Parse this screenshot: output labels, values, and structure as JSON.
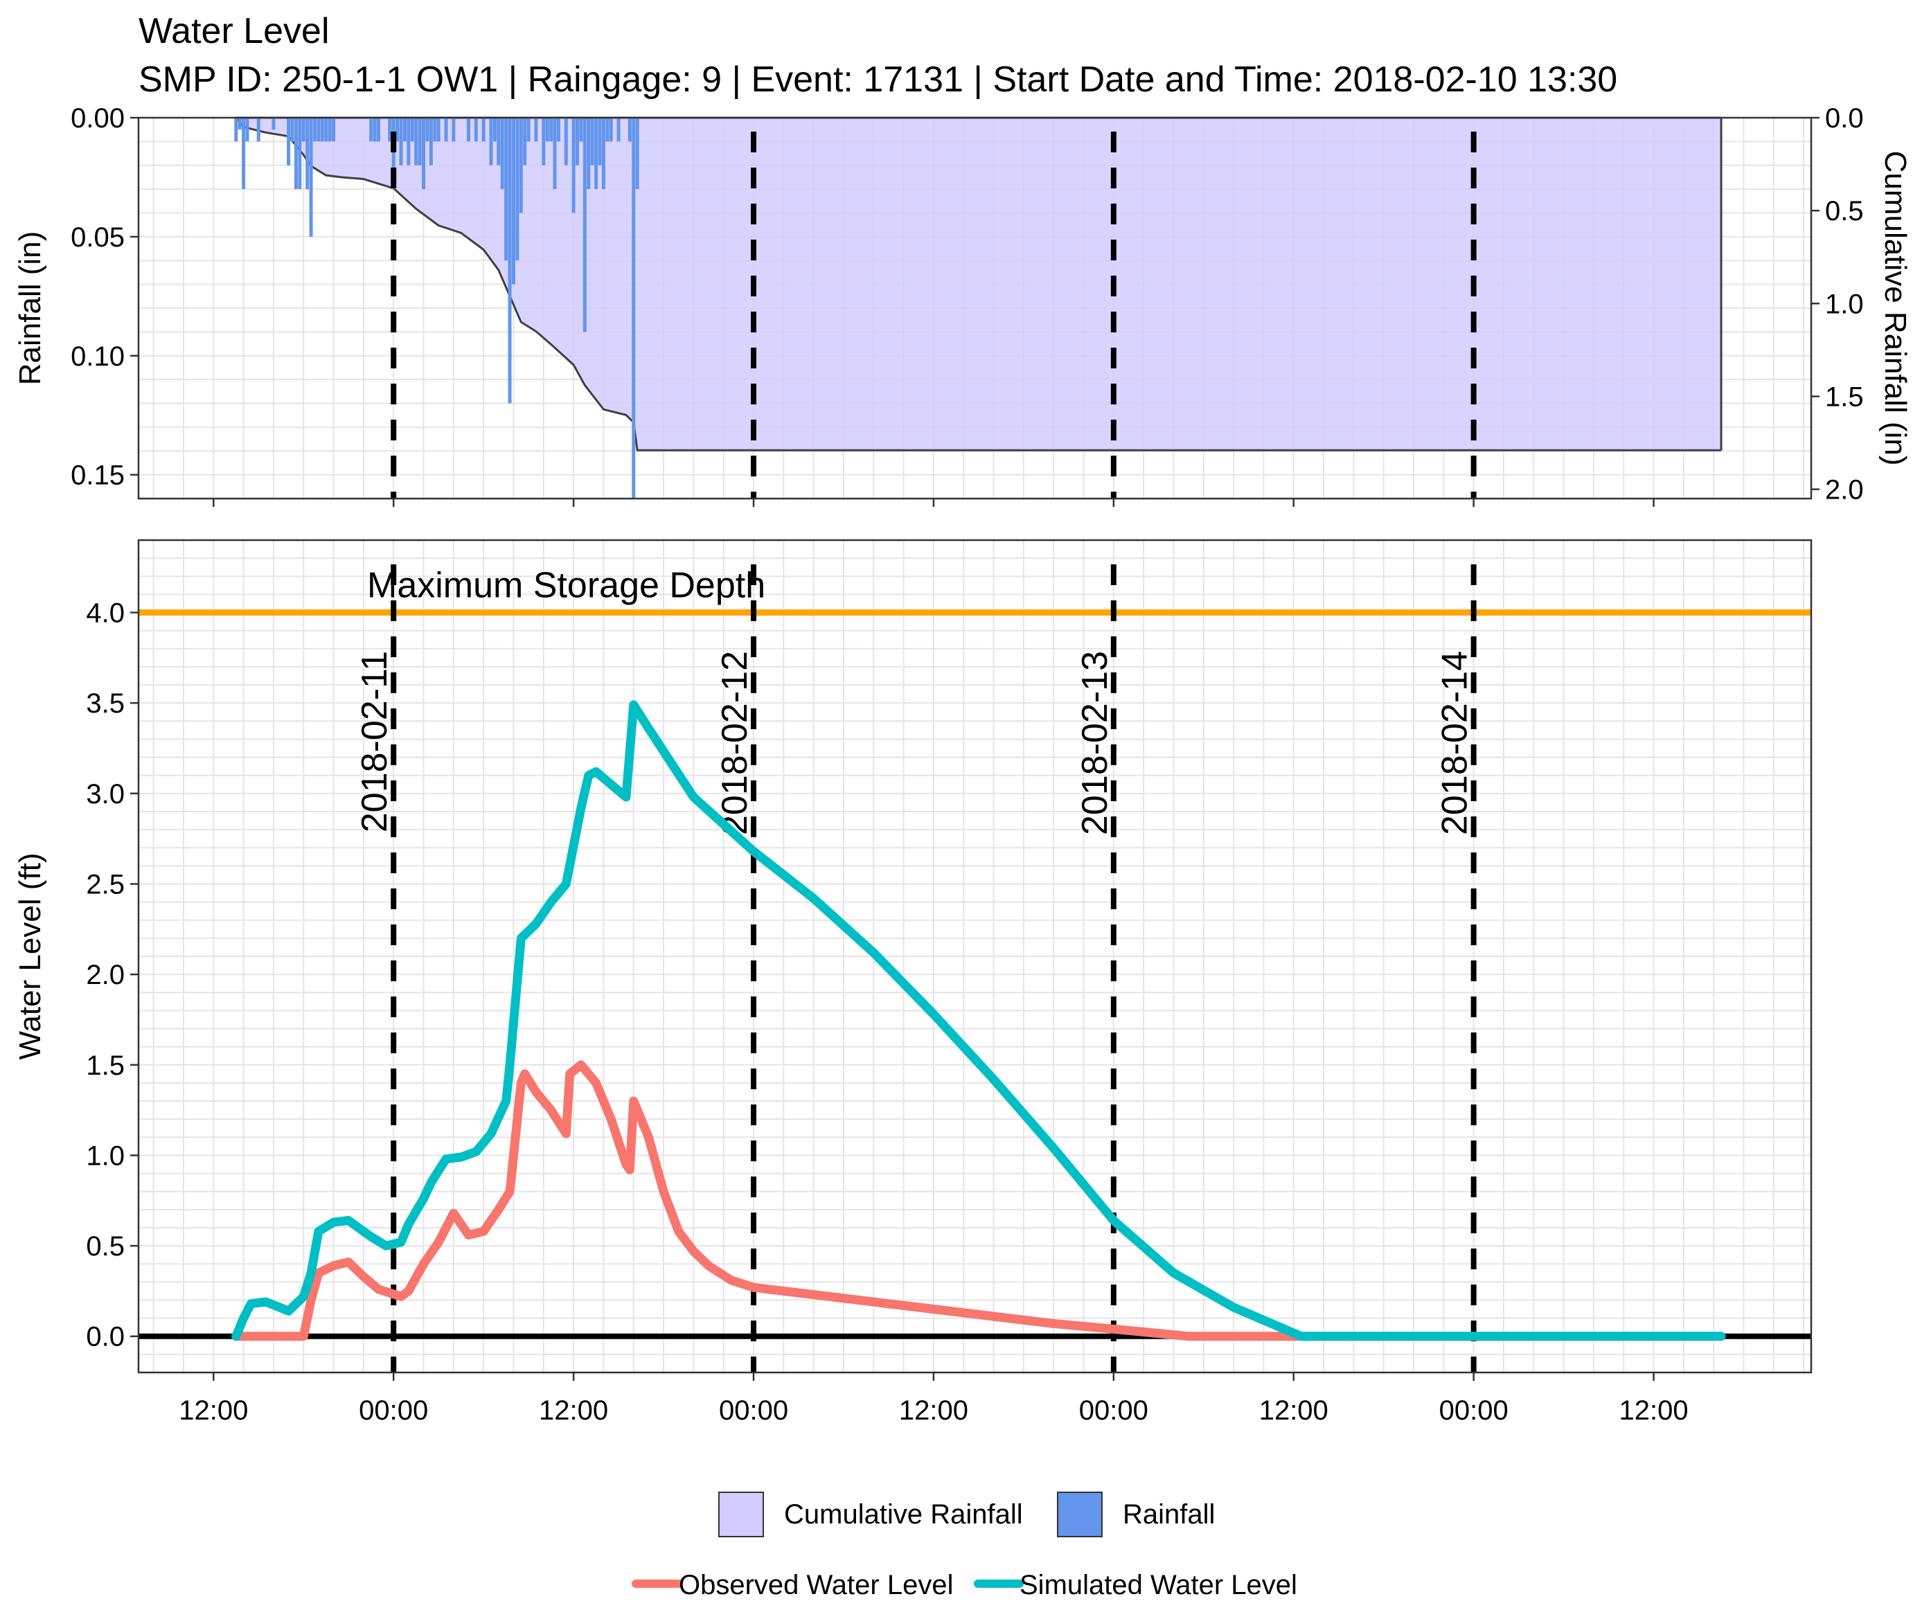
{
  "title": "Water Level",
  "subtitle": "SMP ID: 250-1-1 OW1 | Raingage: 9 | Event: 17131 | Start Date and Time: 2018-02-10 13:30",
  "colors": {
    "cumulative_fill": "#D2CCFF",
    "cumulative_line": "#404040",
    "rainfall": "#6495ED",
    "observed": "#F8766D",
    "simulated": "#00BFC4",
    "max_storage": "#FFA500",
    "day_lines": "#000000",
    "zero_line": "#000000",
    "grid": "#E5E5E5"
  },
  "chart_data": [
    {
      "type": "bar",
      "name": "rainfall-panel",
      "ylabel": "Rainfall (in)",
      "ylabel_right": "Cumulative Rainfall (in)",
      "y_reversed": true,
      "ylim": [
        0,
        0.16
      ],
      "ylim_right": [
        0,
        2.05
      ],
      "yticks": [
        "0.00",
        "0.05",
        "0.10",
        "0.15"
      ],
      "yticks_right": [
        "0.0",
        "0.5",
        "1.0",
        "1.5",
        "2.0"
      ],
      "xlim": [
        "2018-02-10 07:00",
        "2018-02-14 22:30"
      ],
      "grid": true,
      "day_lines": [
        "2018-02-11 00:00",
        "2018-02-12 00:00",
        "2018-02-13 00:00",
        "2018-02-14 00:00"
      ],
      "series": [
        {
          "name": "Rainfall",
          "type": "bar",
          "points": [
            [
              "2018-02-10 13:30",
              0.01
            ],
            [
              "2018-02-10 13:45",
              0.005
            ],
            [
              "2018-02-10 14:00",
              0.03
            ],
            [
              "2018-02-10 14:15",
              0.01
            ],
            [
              "2018-02-10 15:00",
              0.01
            ],
            [
              "2018-02-10 16:00",
              0.005
            ],
            [
              "2018-02-10 17:00",
              0.02
            ],
            [
              "2018-02-10 17:15",
              0.01
            ],
            [
              "2018-02-10 17:30",
              0.03
            ],
            [
              "2018-02-10 17:45",
              0.03
            ],
            [
              "2018-02-10 18:00",
              0.01
            ],
            [
              "2018-02-10 18:15",
              0.03
            ],
            [
              "2018-02-10 18:30",
              0.05
            ],
            [
              "2018-02-10 18:45",
              0.01
            ],
            [
              "2018-02-10 19:00",
              0.01
            ],
            [
              "2018-02-10 19:15",
              0.01
            ],
            [
              "2018-02-10 19:30",
              0.01
            ],
            [
              "2018-02-10 19:45",
              0.01
            ],
            [
              "2018-02-10 20:00",
              0.01
            ],
            [
              "2018-02-10 22:30",
              0.01
            ],
            [
              "2018-02-10 22:45",
              0.01
            ],
            [
              "2018-02-10 23:00",
              0.01
            ],
            [
              "2018-02-10 23:45",
              0.01
            ],
            [
              "2018-02-11 00:00",
              0.03
            ],
            [
              "2018-02-11 00:15",
              0.01
            ],
            [
              "2018-02-11 00:30",
              0.02
            ],
            [
              "2018-02-11 00:45",
              0.01
            ],
            [
              "2018-02-11 01:00",
              0.02
            ],
            [
              "2018-02-11 01:15",
              0.01
            ],
            [
              "2018-02-11 01:30",
              0.02
            ],
            [
              "2018-02-11 01:45",
              0.02
            ],
            [
              "2018-02-11 02:00",
              0.03
            ],
            [
              "2018-02-11 02:15",
              0.01
            ],
            [
              "2018-02-11 02:30",
              0.02
            ],
            [
              "2018-02-11 02:45",
              0.01
            ],
            [
              "2018-02-11 03:00",
              0.01
            ],
            [
              "2018-02-11 03:30",
              0.01
            ],
            [
              "2018-02-11 04:00",
              0.01
            ],
            [
              "2018-02-11 05:00",
              0.01
            ],
            [
              "2018-02-11 05:30",
              0.01
            ],
            [
              "2018-02-11 06:00",
              0.01
            ],
            [
              "2018-02-11 06:30",
              0.02
            ],
            [
              "2018-02-11 06:45",
              0.01
            ],
            [
              "2018-02-11 07:00",
              0.02
            ],
            [
              "2018-02-11 07:15",
              0.03
            ],
            [
              "2018-02-11 07:30",
              0.06
            ],
            [
              "2018-02-11 07:45",
              0.12
            ],
            [
              "2018-02-11 08:00",
              0.07
            ],
            [
              "2018-02-11 08:15",
              0.06
            ],
            [
              "2018-02-11 08:30",
              0.04
            ],
            [
              "2018-02-11 08:45",
              0.02
            ],
            [
              "2018-02-11 09:00",
              0.01
            ],
            [
              "2018-02-11 09:30",
              0.01
            ],
            [
              "2018-02-11 10:00",
              0.02
            ],
            [
              "2018-02-11 10:15",
              0.01
            ],
            [
              "2018-02-11 10:30",
              0.01
            ],
            [
              "2018-02-11 10:45",
              0.03
            ],
            [
              "2018-02-11 11:00",
              0.01
            ],
            [
              "2018-02-11 11:30",
              0.02
            ],
            [
              "2018-02-11 12:00",
              0.04
            ],
            [
              "2018-02-11 12:15",
              0.02
            ],
            [
              "2018-02-11 12:30",
              0.01
            ],
            [
              "2018-02-11 12:45",
              0.09
            ],
            [
              "2018-02-11 13:00",
              0.03
            ],
            [
              "2018-02-11 13:15",
              0.02
            ],
            [
              "2018-02-11 13:30",
              0.03
            ],
            [
              "2018-02-11 13:45",
              0.02
            ],
            [
              "2018-02-11 14:00",
              0.03
            ],
            [
              "2018-02-11 14:15",
              0.01
            ],
            [
              "2018-02-11 14:30",
              0.01
            ],
            [
              "2018-02-11 15:00",
              0.01
            ],
            [
              "2018-02-11 15:45",
              0.01
            ],
            [
              "2018-02-11 16:00",
              0.16
            ],
            [
              "2018-02-11 16:15",
              0.03
            ]
          ]
        },
        {
          "name": "Cumulative Rainfall",
          "type": "area",
          "points": [
            [
              "2018-02-10 13:30",
              0.0
            ],
            [
              "2018-02-10 14:00",
              0.05
            ],
            [
              "2018-02-10 15:30",
              0.08
            ],
            [
              "2018-02-10 17:00",
              0.1
            ],
            [
              "2018-02-10 18:00",
              0.2
            ],
            [
              "2018-02-10 18:30",
              0.26
            ],
            [
              "2018-02-10 19:30",
              0.31
            ],
            [
              "2018-02-10 20:30",
              0.32
            ],
            [
              "2018-02-10 22:00",
              0.33
            ],
            [
              "2018-02-11 00:00",
              0.38
            ],
            [
              "2018-02-11 01:30",
              0.49
            ],
            [
              "2018-02-11 03:00",
              0.58
            ],
            [
              "2018-02-11 04:30",
              0.62
            ],
            [
              "2018-02-11 06:00",
              0.71
            ],
            [
              "2018-02-11 07:00",
              0.82
            ],
            [
              "2018-02-11 07:45",
              0.96
            ],
            [
              "2018-02-11 08:30",
              1.1
            ],
            [
              "2018-02-11 09:30",
              1.15
            ],
            [
              "2018-02-11 10:30",
              1.22
            ],
            [
              "2018-02-11 12:00",
              1.33
            ],
            [
              "2018-02-11 12:45",
              1.44
            ],
            [
              "2018-02-11 14:00",
              1.57
            ],
            [
              "2018-02-11 15:30",
              1.6
            ],
            [
              "2018-02-11 16:00",
              1.64
            ],
            [
              "2018-02-11 16:15",
              1.79
            ],
            [
              "2018-02-14 16:30",
              1.79
            ]
          ]
        }
      ]
    },
    {
      "type": "line",
      "name": "water-level-panel",
      "ylabel": "Water Level (ft)",
      "ylim": [
        -0.2,
        4.4
      ],
      "yticks": [
        "0.0",
        "0.5",
        "1.0",
        "1.5",
        "2.0",
        "2.5",
        "3.0",
        "3.5",
        "4.0"
      ],
      "xlim": [
        "2018-02-10 07:00",
        "2018-02-14 22:30"
      ],
      "xticks": [
        [
          "2018-02-10 12:00",
          "12:00"
        ],
        [
          "2018-02-11 00:00",
          "00:00"
        ],
        [
          "2018-02-11 12:00",
          "12:00"
        ],
        [
          "2018-02-12 00:00",
          "00:00"
        ],
        [
          "2018-02-12 12:00",
          "12:00"
        ],
        [
          "2018-02-13 00:00",
          "00:00"
        ],
        [
          "2018-02-13 12:00",
          "12:00"
        ],
        [
          "2018-02-14 00:00",
          "00:00"
        ],
        [
          "2018-02-14 12:00",
          "12:00"
        ]
      ],
      "grid": true,
      "max_storage_depth": 4.0,
      "max_storage_label": "Maximum Storage Depth",
      "day_lines": [
        [
          "2018-02-11 00:00",
          "2018-02-11"
        ],
        [
          "2018-02-12 00:00",
          "2018-02-12"
        ],
        [
          "2018-02-13 00:00",
          "2018-02-13"
        ],
        [
          "2018-02-14 00:00",
          "2018-02-14"
        ]
      ],
      "series": [
        {
          "name": "Observed Water Level",
          "points": [
            [
              "2018-02-10 13:30",
              0.0
            ],
            [
              "2018-02-10 18:00",
              0.0
            ],
            [
              "2018-02-10 18:30",
              0.2
            ],
            [
              "2018-02-10 19:00",
              0.35
            ],
            [
              "2018-02-10 20:00",
              0.39
            ],
            [
              "2018-02-10 21:00",
              0.41
            ],
            [
              "2018-02-10 22:00",
              0.33
            ],
            [
              "2018-02-10 23:00",
              0.26
            ],
            [
              "2018-02-11 00:30",
              0.22
            ],
            [
              "2018-02-11 01:00",
              0.25
            ],
            [
              "2018-02-11 02:00",
              0.4
            ],
            [
              "2018-02-11 03:00",
              0.52
            ],
            [
              "2018-02-11 03:30",
              0.6
            ],
            [
              "2018-02-11 04:00",
              0.68
            ],
            [
              "2018-02-11 05:00",
              0.56
            ],
            [
              "2018-02-11 06:00",
              0.58
            ],
            [
              "2018-02-11 07:00",
              0.7
            ],
            [
              "2018-02-11 07:45",
              0.8
            ],
            [
              "2018-02-11 08:00",
              1.0
            ],
            [
              "2018-02-11 08:30",
              1.4
            ],
            [
              "2018-02-11 08:45",
              1.45
            ],
            [
              "2018-02-11 09:30",
              1.35
            ],
            [
              "2018-02-11 10:30",
              1.25
            ],
            [
              "2018-02-11 11:30",
              1.12
            ],
            [
              "2018-02-11 11:45",
              1.45
            ],
            [
              "2018-02-11 12:30",
              1.5
            ],
            [
              "2018-02-11 13:30",
              1.4
            ],
            [
              "2018-02-11 14:30",
              1.2
            ],
            [
              "2018-02-11 15:30",
              0.95
            ],
            [
              "2018-02-11 15:45",
              0.92
            ],
            [
              "2018-02-11 16:00",
              1.3
            ],
            [
              "2018-02-11 17:00",
              1.1
            ],
            [
              "2018-02-11 18:00",
              0.8
            ],
            [
              "2018-02-11 19:00",
              0.58
            ],
            [
              "2018-02-11 20:00",
              0.47
            ],
            [
              "2018-02-11 21:00",
              0.39
            ],
            [
              "2018-02-11 22:30",
              0.31
            ],
            [
              "2018-02-12 00:00",
              0.27
            ],
            [
              "2018-02-12 04:00",
              0.23
            ],
            [
              "2018-02-12 08:00",
              0.19
            ],
            [
              "2018-02-12 12:00",
              0.15
            ],
            [
              "2018-02-12 16:00",
              0.11
            ],
            [
              "2018-02-12 20:00",
              0.07
            ],
            [
              "2018-02-13 00:00",
              0.04
            ],
            [
              "2018-02-13 02:30",
              0.02
            ],
            [
              "2018-02-13 05:00",
              0.0
            ],
            [
              "2018-02-14 16:30",
              0.0
            ]
          ]
        },
        {
          "name": "Simulated Water Level",
          "points": [
            [
              "2018-02-10 13:30",
              0.0
            ],
            [
              "2018-02-10 14:00",
              0.1
            ],
            [
              "2018-02-10 14:30",
              0.18
            ],
            [
              "2018-02-10 15:30",
              0.19
            ],
            [
              "2018-02-10 17:00",
              0.14
            ],
            [
              "2018-02-10 18:00",
              0.22
            ],
            [
              "2018-02-10 18:30",
              0.35
            ],
            [
              "2018-02-10 19:00",
              0.58
            ],
            [
              "2018-02-10 20:00",
              0.63
            ],
            [
              "2018-02-10 21:00",
              0.64
            ],
            [
              "2018-02-10 22:30",
              0.55
            ],
            [
              "2018-02-10 23:30",
              0.5
            ],
            [
              "2018-02-11 00:30",
              0.52
            ],
            [
              "2018-02-11 01:00",
              0.62
            ],
            [
              "2018-02-11 02:00",
              0.76
            ],
            [
              "2018-02-11 02:30",
              0.85
            ],
            [
              "2018-02-11 03:30",
              0.98
            ],
            [
              "2018-02-11 04:30",
              0.99
            ],
            [
              "2018-02-11 05:30",
              1.02
            ],
            [
              "2018-02-11 06:30",
              1.12
            ],
            [
              "2018-02-11 07:30",
              1.3
            ],
            [
              "2018-02-11 07:45",
              1.5
            ],
            [
              "2018-02-11 08:30",
              2.2
            ],
            [
              "2018-02-11 09:30",
              2.28
            ],
            [
              "2018-02-11 10:30",
              2.4
            ],
            [
              "2018-02-11 11:30",
              2.5
            ],
            [
              "2018-02-11 12:30",
              2.92
            ],
            [
              "2018-02-11 13:00",
              3.1
            ],
            [
              "2018-02-11 13:30",
              3.12
            ],
            [
              "2018-02-11 14:30",
              3.05
            ],
            [
              "2018-02-11 15:30",
              2.98
            ],
            [
              "2018-02-11 16:00",
              3.49
            ],
            [
              "2018-02-11 17:00",
              3.36
            ],
            [
              "2018-02-11 20:00",
              2.98
            ],
            [
              "2018-02-12 00:00",
              2.68
            ],
            [
              "2018-02-12 04:00",
              2.42
            ],
            [
              "2018-02-12 08:00",
              2.12
            ],
            [
              "2018-02-12 12:00",
              1.78
            ],
            [
              "2018-02-12 16:00",
              1.42
            ],
            [
              "2018-02-12 20:00",
              1.04
            ],
            [
              "2018-02-13 00:00",
              0.64
            ],
            [
              "2018-02-13 04:00",
              0.35
            ],
            [
              "2018-02-13 08:00",
              0.16
            ],
            [
              "2018-02-13 12:30",
              0.0
            ],
            [
              "2018-02-14 16:30",
              0.0
            ]
          ]
        }
      ]
    }
  ],
  "legend": {
    "fill_items": [
      {
        "label": "Cumulative Rainfall",
        "swatch": "#D2CCFF"
      },
      {
        "label": "Rainfall",
        "swatch": "#6495ED"
      }
    ],
    "line_items": [
      {
        "label": "Observed Water Level",
        "swatch": "#F8766D"
      },
      {
        "label": "Simulated Water Level",
        "swatch": "#00BFC4"
      }
    ]
  }
}
